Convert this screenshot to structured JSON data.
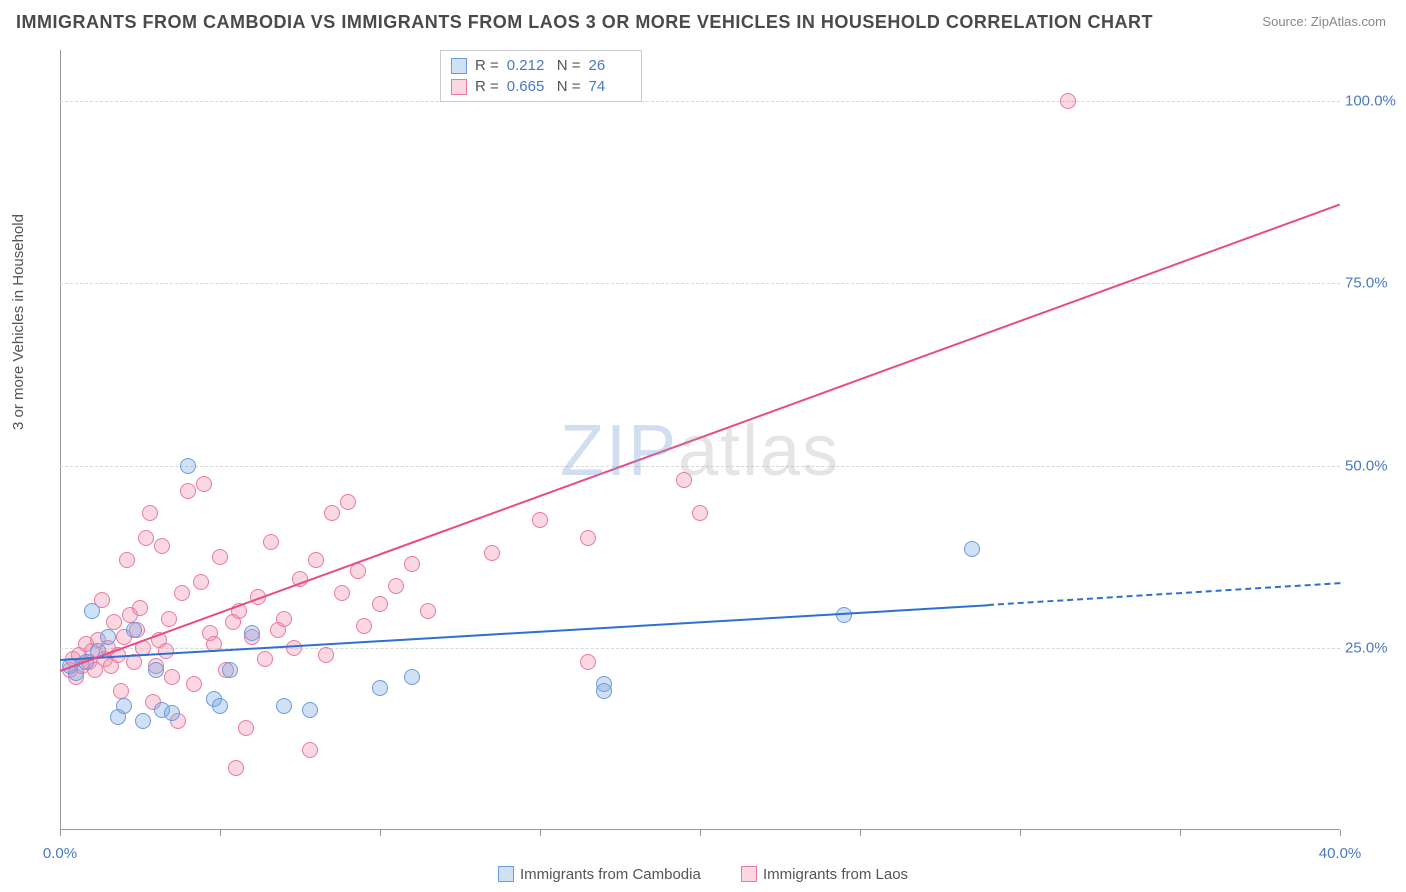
{
  "title": "IMMIGRANTS FROM CAMBODIA VS IMMIGRANTS FROM LAOS 3 OR MORE VEHICLES IN HOUSEHOLD CORRELATION CHART",
  "source_label": "Source:",
  "source_value": "ZipAtlas.com",
  "y_axis_label": "3 or more Vehicles in Household",
  "watermark_zip": "ZIP",
  "watermark_atlas": "atlas",
  "chart": {
    "type": "scatter",
    "xlim": [
      0,
      40
    ],
    "ylim": [
      0,
      107
    ],
    "background_color": "#ffffff",
    "grid_color": "#d8d8d8",
    "axis_color": "#999999",
    "tick_label_color": "#4a78c4",
    "axis_label_color": "#555555",
    "y_gridlines": [
      25,
      50,
      75,
      100
    ],
    "y_tick_labels": [
      "25.0%",
      "50.0%",
      "75.0%",
      "100.0%"
    ],
    "x_ticks": [
      0,
      5,
      10,
      15,
      20,
      25,
      30,
      35,
      40
    ],
    "x_tick_labels_shown": {
      "0": "0.0%",
      "40": "40.0%"
    },
    "marker_radius": 8,
    "marker_border_width": 1.2,
    "line_width": 2
  },
  "series": {
    "cambodia": {
      "label": "Immigrants from Cambodia",
      "fill_color": "rgba(120,165,225,0.35)",
      "stroke_color": "#6a9be0",
      "line_color": "#2e6fd1",
      "R_label": "R =",
      "R": "0.212",
      "N_label": "N =",
      "N": "26",
      "regression": {
        "x1": 0,
        "y1": 23.5,
        "x2": 29,
        "y2": 31.0,
        "dash_to_x": 40,
        "dash_to_y": 34.0
      },
      "points": [
        [
          0.3,
          22.5
        ],
        [
          0.5,
          21.5
        ],
        [
          0.8,
          23.0
        ],
        [
          1.0,
          30.0
        ],
        [
          1.2,
          24.5
        ],
        [
          1.5,
          26.5
        ],
        [
          1.8,
          15.5
        ],
        [
          2.0,
          17.0
        ],
        [
          2.3,
          27.5
        ],
        [
          2.6,
          15.0
        ],
        [
          3.0,
          22.0
        ],
        [
          3.2,
          16.5
        ],
        [
          3.5,
          16.0
        ],
        [
          4.0,
          50.0
        ],
        [
          4.8,
          18.0
        ],
        [
          5.0,
          17.0
        ],
        [
          5.3,
          22.0
        ],
        [
          6.0,
          27.0
        ],
        [
          7.0,
          17.0
        ],
        [
          7.8,
          16.5
        ],
        [
          10.0,
          19.5
        ],
        [
          11.0,
          21.0
        ],
        [
          17.0,
          20.0
        ],
        [
          17.0,
          19.0
        ],
        [
          24.5,
          29.5
        ],
        [
          28.5,
          38.5
        ]
      ]
    },
    "laos": {
      "label": "Immigrants from Laos",
      "fill_color": "rgba(240,140,170,0.35)",
      "stroke_color": "#eb7aa0",
      "line_color": "#e94b8a",
      "R_label": "R =",
      "R": "0.665",
      "N_label": "N =",
      "N": "74",
      "regression": {
        "x1": 0,
        "y1": 22.0,
        "x2": 40,
        "y2": 86.0
      },
      "points": [
        [
          0.3,
          22.0
        ],
        [
          0.4,
          23.5
        ],
        [
          0.5,
          21.0
        ],
        [
          0.6,
          24.0
        ],
        [
          0.7,
          22.5
        ],
        [
          0.8,
          25.5
        ],
        [
          0.9,
          23.0
        ],
        [
          1.0,
          24.5
        ],
        [
          1.1,
          22.0
        ],
        [
          1.2,
          26.0
        ],
        [
          1.3,
          31.5
        ],
        [
          1.4,
          23.5
        ],
        [
          1.5,
          25.0
        ],
        [
          1.6,
          22.5
        ],
        [
          1.7,
          28.5
        ],
        [
          1.8,
          24.0
        ],
        [
          1.9,
          19.0
        ],
        [
          2.0,
          26.5
        ],
        [
          2.1,
          37.0
        ],
        [
          2.2,
          29.5
        ],
        [
          2.3,
          23.0
        ],
        [
          2.4,
          27.5
        ],
        [
          2.5,
          30.5
        ],
        [
          2.6,
          25.0
        ],
        [
          2.7,
          40.0
        ],
        [
          2.8,
          43.5
        ],
        [
          2.9,
          17.5
        ],
        [
          3.0,
          22.5
        ],
        [
          3.1,
          26.0
        ],
        [
          3.2,
          39.0
        ],
        [
          3.3,
          24.5
        ],
        [
          3.4,
          29.0
        ],
        [
          3.5,
          21.0
        ],
        [
          3.7,
          15.0
        ],
        [
          3.8,
          32.5
        ],
        [
          4.0,
          46.5
        ],
        [
          4.2,
          20.0
        ],
        [
          4.4,
          34.0
        ],
        [
          4.5,
          47.5
        ],
        [
          4.7,
          27.0
        ],
        [
          4.8,
          25.5
        ],
        [
          5.0,
          37.5
        ],
        [
          5.2,
          22.0
        ],
        [
          5.4,
          28.5
        ],
        [
          5.5,
          8.5
        ],
        [
          5.6,
          30.0
        ],
        [
          5.8,
          14.0
        ],
        [
          6.0,
          26.5
        ],
        [
          6.2,
          32.0
        ],
        [
          6.4,
          23.5
        ],
        [
          6.6,
          39.5
        ],
        [
          6.8,
          27.5
        ],
        [
          7.0,
          29.0
        ],
        [
          7.3,
          25.0
        ],
        [
          7.5,
          34.5
        ],
        [
          7.8,
          11.0
        ],
        [
          8.0,
          37.0
        ],
        [
          8.3,
          24.0
        ],
        [
          8.5,
          43.5
        ],
        [
          8.8,
          32.5
        ],
        [
          9.0,
          45.0
        ],
        [
          9.3,
          35.5
        ],
        [
          9.5,
          28.0
        ],
        [
          10.0,
          31.0
        ],
        [
          10.5,
          33.5
        ],
        [
          11.0,
          36.5
        ],
        [
          11.5,
          30.0
        ],
        [
          13.5,
          38.0
        ],
        [
          15.0,
          42.5
        ],
        [
          16.5,
          23.0
        ],
        [
          16.5,
          40.0
        ],
        [
          19.5,
          48.0
        ],
        [
          20.0,
          43.5
        ],
        [
          31.5,
          100.0
        ]
      ]
    }
  },
  "bottom_legend": [
    {
      "key": "cambodia"
    },
    {
      "key": "laos"
    }
  ]
}
